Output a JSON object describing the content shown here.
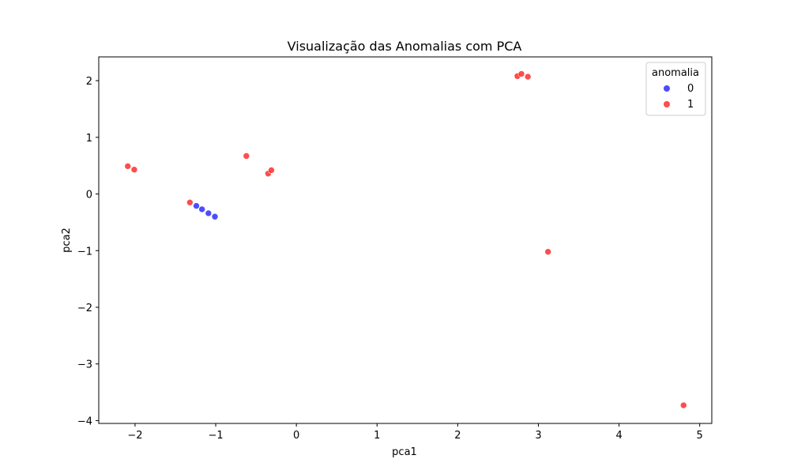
{
  "chart_data": {
    "type": "scatter",
    "title": "Visualização das Anomalias com PCA",
    "xlabel": "pca1",
    "ylabel": "pca2",
    "xlim": [
      -2.45,
      5.15
    ],
    "ylim": [
      -4.05,
      2.42
    ],
    "xticks": [
      -2,
      -1,
      0,
      1,
      2,
      3,
      4,
      5
    ],
    "yticks": [
      -4,
      -3,
      -2,
      -1,
      0,
      1,
      2
    ],
    "xtick_labels": [
      "−2",
      "−1",
      "0",
      "1",
      "2",
      "3",
      "4",
      "5"
    ],
    "ytick_labels": [
      "−4",
      "−3",
      "−2",
      "−1",
      "0",
      "1",
      "2"
    ],
    "grid": false,
    "legend": {
      "title": "anomalia",
      "placement": "top-right",
      "entries": [
        "0",
        "1"
      ]
    },
    "series": [
      {
        "name": "0",
        "color": "#0000ff",
        "points": [
          {
            "x": -1.24,
            "y": -0.21
          },
          {
            "x": -1.17,
            "y": -0.27
          },
          {
            "x": -1.09,
            "y": -0.34
          },
          {
            "x": -1.01,
            "y": -0.4
          }
        ]
      },
      {
        "name": "1",
        "color": "#ff0000",
        "points": [
          {
            "x": -2.09,
            "y": 0.49
          },
          {
            "x": -2.01,
            "y": 0.43
          },
          {
            "x": -1.32,
            "y": -0.15
          },
          {
            "x": -0.62,
            "y": 0.67
          },
          {
            "x": -0.35,
            "y": 0.36
          },
          {
            "x": -0.31,
            "y": 0.42
          },
          {
            "x": 2.74,
            "y": 2.08
          },
          {
            "x": 2.79,
            "y": 2.12
          },
          {
            "x": 2.87,
            "y": 2.07
          },
          {
            "x": 3.12,
            "y": -1.02
          },
          {
            "x": 4.8,
            "y": -3.73
          }
        ]
      }
    ]
  }
}
